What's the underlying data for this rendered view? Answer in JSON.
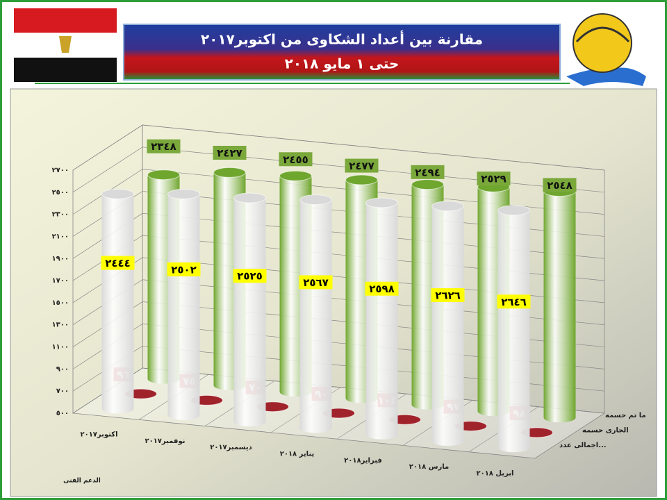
{
  "header": {
    "title_line1": "مقارنة بين أعداد الشكاوى من اكتوبر٢٠١٧",
    "title_line2": "حتى ١ مايو ٢٠١٨"
  },
  "footer": "الدعم الفنى",
  "chart_data": {
    "type": "cylinder3d",
    "categories": [
      "اكتوبر٢٠١٧",
      "نوفمبر٢٠١٧",
      "ديسمبر٢٠١٧",
      "يناير ٢٠١٨",
      "فبراير٢٠١٨",
      "مارس ٢٠١٨",
      "ابريل ٢٠١٨"
    ],
    "series": [
      {
        "name": "اجمالى عدد...",
        "color": "#d9d9d9",
        "values": [
          2444,
          2502,
          2525,
          2567,
          2598,
          2626,
          2646
        ],
        "value_labels": [
          "٢٤٤٤",
          "٢٥٠٢",
          "٢٥٢٥",
          "٢٥٦٧",
          "٢٥٩٨",
          "٢٦٢٦",
          "٢٦٤٦"
        ]
      },
      {
        "name": "الجارى حسمه",
        "color": "#a0232b",
        "values": [
          96,
          75,
          70,
          90,
          104,
          97,
          98
        ],
        "value_labels": [
          "٩٦",
          "٧٥",
          "٧٠",
          "٩٠",
          "١٠٤",
          "٩٧",
          "٩٨"
        ]
      },
      {
        "name": "ما تم حسمه",
        "color": "#6fa62e",
        "values": [
          2348,
          2427,
          2455,
          2477,
          2494,
          2529,
          2548
        ],
        "value_labels": [
          "٢٣٤٨",
          "٢٤٢٧",
          "٢٤٥٥",
          "٢٤٧٧",
          "٢٤٩٤",
          "٢٥٢٩",
          "٢٥٤٨"
        ]
      }
    ],
    "ylim": [
      500,
      2700
    ],
    "yticks": [
      {
        "value": 500,
        "label": "٥٠٠"
      },
      {
        "value": 700,
        "label": "٧٠٠"
      },
      {
        "value": 900,
        "label": "٩٠٠"
      },
      {
        "value": 1100,
        "label": "١١٠٠"
      },
      {
        "value": 1300,
        "label": "١٣٠٠"
      },
      {
        "value": 1500,
        "label": "١٥٠٠"
      },
      {
        "value": 1700,
        "label": "١٧٠٠"
      },
      {
        "value": 1900,
        "label": "١٩٠٠"
      },
      {
        "value": 2100,
        "label": "٢١٠٠"
      },
      {
        "value": 2300,
        "label": "٢٣٠٠"
      },
      {
        "value": 2500,
        "label": "٢٥٠٠"
      },
      {
        "value": 2700,
        "label": "٢٧٠٠"
      }
    ],
    "grid": true
  }
}
